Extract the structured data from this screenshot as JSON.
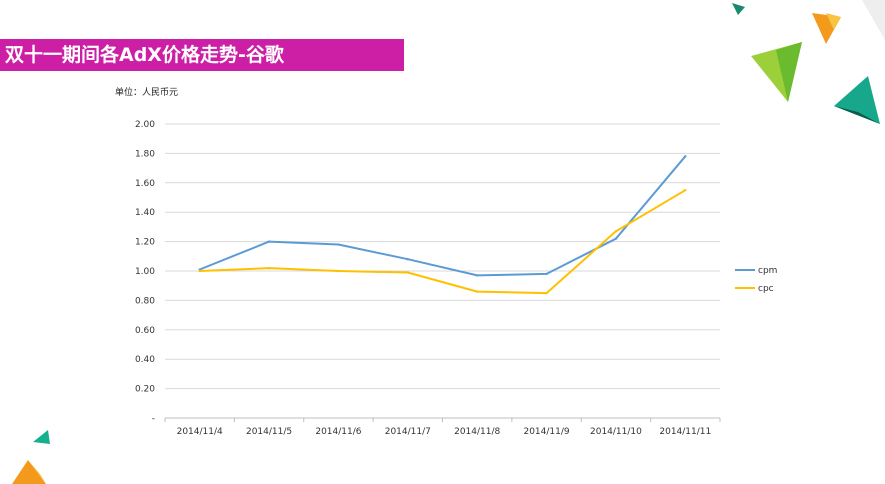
{
  "slide": {
    "title": "双十一期间各AdX价格走势-谷歌",
    "unit_label": "单位：人民币元"
  },
  "colors": {
    "title_bar": "#cc1fa6",
    "cpm": "#5b9bd5",
    "cpc": "#ffc000",
    "grid": "#d9d9d9"
  },
  "chart_data": {
    "type": "line",
    "title": "",
    "xlabel": "",
    "ylabel": "",
    "categories": [
      "2014/11/4",
      "2014/11/5",
      "2014/11/6",
      "2014/11/7",
      "2014/11/8",
      "2014/11/9",
      "2014/11/10",
      "2014/11/11"
    ],
    "series": [
      {
        "name": "cpm",
        "color": "#5b9bd5",
        "values": [
          1.01,
          1.2,
          1.18,
          1.08,
          0.97,
          0.98,
          1.22,
          1.78
        ]
      },
      {
        "name": "cpc",
        "color": "#ffc000",
        "values": [
          1.0,
          1.02,
          1.0,
          0.99,
          0.86,
          0.85,
          1.27,
          1.55
        ]
      }
    ],
    "ylim": [
      0,
      2.0
    ],
    "yticks": [
      "-",
      "0.20",
      "0.40",
      "0.60",
      "0.80",
      "1.00",
      "1.20",
      "1.40",
      "1.60",
      "1.80",
      "2.00"
    ],
    "grid": true,
    "legend": "right"
  }
}
